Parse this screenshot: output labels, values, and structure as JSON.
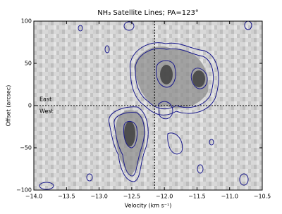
{
  "chart_data": {
    "type": "pv-diagram",
    "title": "NH₃ Satellite Lines; PA=123°",
    "x_label": "Velocity (km s⁻¹)",
    "y_label": "Offset (arcsec)",
    "xlim": [
      -14,
      -10.5
    ],
    "xticks": [
      {
        "value": -14,
        "label": "−14.0"
      },
      {
        "value": -13.5,
        "label": "−13.5"
      },
      {
        "value": -13,
        "label": "−13.0"
      },
      {
        "value": -12.5,
        "label": "−12.5"
      },
      {
        "value": -12,
        "label": "−12.0"
      },
      {
        "value": -11.5,
        "label": "−11.5"
      },
      {
        "value": -11,
        "label": "−11.0"
      },
      {
        "value": -10.5,
        "label": "−10.5"
      }
    ],
    "ylim": [
      -100,
      100
    ],
    "yticks": [
      100,
      50,
      0,
      {
        "value": -50,
        "label": "−50"
      },
      {
        "value": -100,
        "label": "−100"
      }
    ],
    "vline": -12.15,
    "hline": 0,
    "annotations": [
      "East",
      "West"
    ],
    "contour_color": "#1a1a8c"
  }
}
